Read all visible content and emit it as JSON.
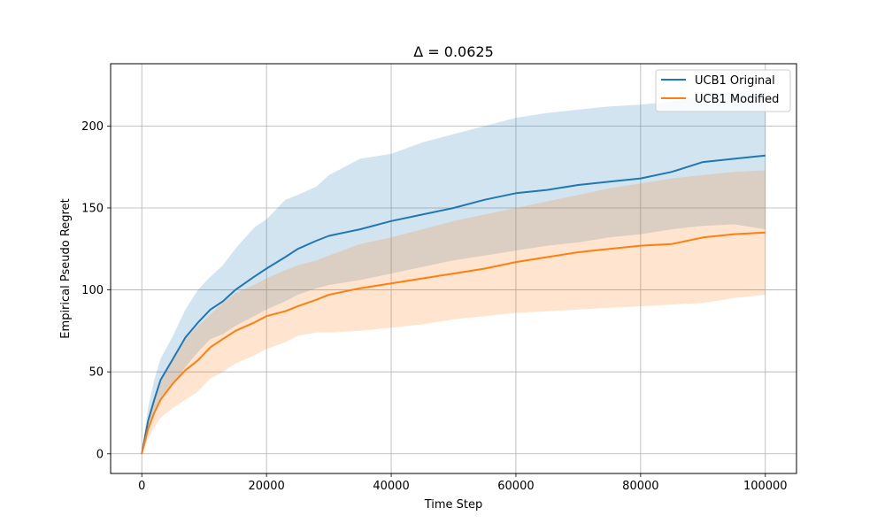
{
  "chart_data": {
    "type": "line",
    "title": "Δ = 0.0625",
    "xlabel": "Time Step",
    "ylabel": "Empirical Pseudo Regret",
    "xlim": [
      -5000,
      105000
    ],
    "ylim": [
      -12,
      238
    ],
    "xticks": [
      0,
      20000,
      40000,
      60000,
      80000,
      100000
    ],
    "yticks": [
      0,
      50,
      100,
      150,
      200
    ],
    "grid": true,
    "legend_position": "top-right",
    "series": [
      {
        "name": "UCB1 Original",
        "color": "#1f77b4",
        "band_color": "#1f77b4",
        "x": [
          0,
          1000,
          2000,
          3000,
          5000,
          7000,
          9000,
          11000,
          13000,
          15000,
          18000,
          20000,
          23000,
          25000,
          28000,
          30000,
          35000,
          40000,
          45000,
          50000,
          55000,
          60000,
          65000,
          70000,
          75000,
          80000,
          85000,
          90000,
          95000,
          100000
        ],
        "mean": [
          0,
          20,
          33,
          45,
          58,
          71,
          80,
          88,
          93,
          100,
          108,
          113,
          120,
          125,
          130,
          133,
          137,
          142,
          146,
          150,
          155,
          159,
          161,
          164,
          166,
          168,
          172,
          178,
          180,
          182
        ],
        "lower": [
          0,
          15,
          25,
          33,
          42,
          53,
          62,
          70,
          73,
          78,
          84,
          88,
          93,
          97,
          101,
          103,
          106,
          110,
          114,
          118,
          121,
          124,
          127,
          129,
          132,
          134,
          137,
          139,
          140,
          137
        ],
        "upper": [
          0,
          28,
          45,
          58,
          72,
          88,
          100,
          108,
          115,
          125,
          138,
          143,
          155,
          158,
          163,
          170,
          180,
          183,
          190,
          195,
          200,
          205,
          208,
          210,
          212,
          213,
          215,
          218,
          221,
          222
        ]
      },
      {
        "name": "UCB1 Modified",
        "color": "#ff7f0e",
        "band_color": "#ff7f0e",
        "x": [
          0,
          1000,
          2000,
          3000,
          5000,
          7000,
          9000,
          11000,
          13000,
          15000,
          18000,
          20000,
          23000,
          25000,
          28000,
          30000,
          35000,
          40000,
          45000,
          50000,
          55000,
          60000,
          65000,
          70000,
          75000,
          80000,
          85000,
          90000,
          95000,
          100000
        ],
        "mean": [
          0,
          15,
          25,
          33,
          43,
          51,
          57,
          65,
          70,
          75,
          80,
          84,
          87,
          90,
          94,
          97,
          101,
          104,
          107,
          110,
          113,
          117,
          120,
          123,
          125,
          127,
          128,
          132,
          134,
          135
        ],
        "lower": [
          0,
          9,
          16,
          22,
          28,
          33,
          38,
          46,
          50,
          55,
          60,
          64,
          68,
          72,
          74,
          74,
          75,
          77,
          79,
          82,
          84,
          86,
          87,
          88,
          89,
          90,
          91,
          92,
          95,
          97
        ],
        "upper": [
          0,
          20,
          34,
          44,
          58,
          70,
          78,
          85,
          92,
          98,
          103,
          107,
          112,
          115,
          118,
          121,
          128,
          132,
          137,
          142,
          146,
          150,
          154,
          158,
          162,
          165,
          168,
          170,
          172,
          173
        ]
      }
    ]
  }
}
